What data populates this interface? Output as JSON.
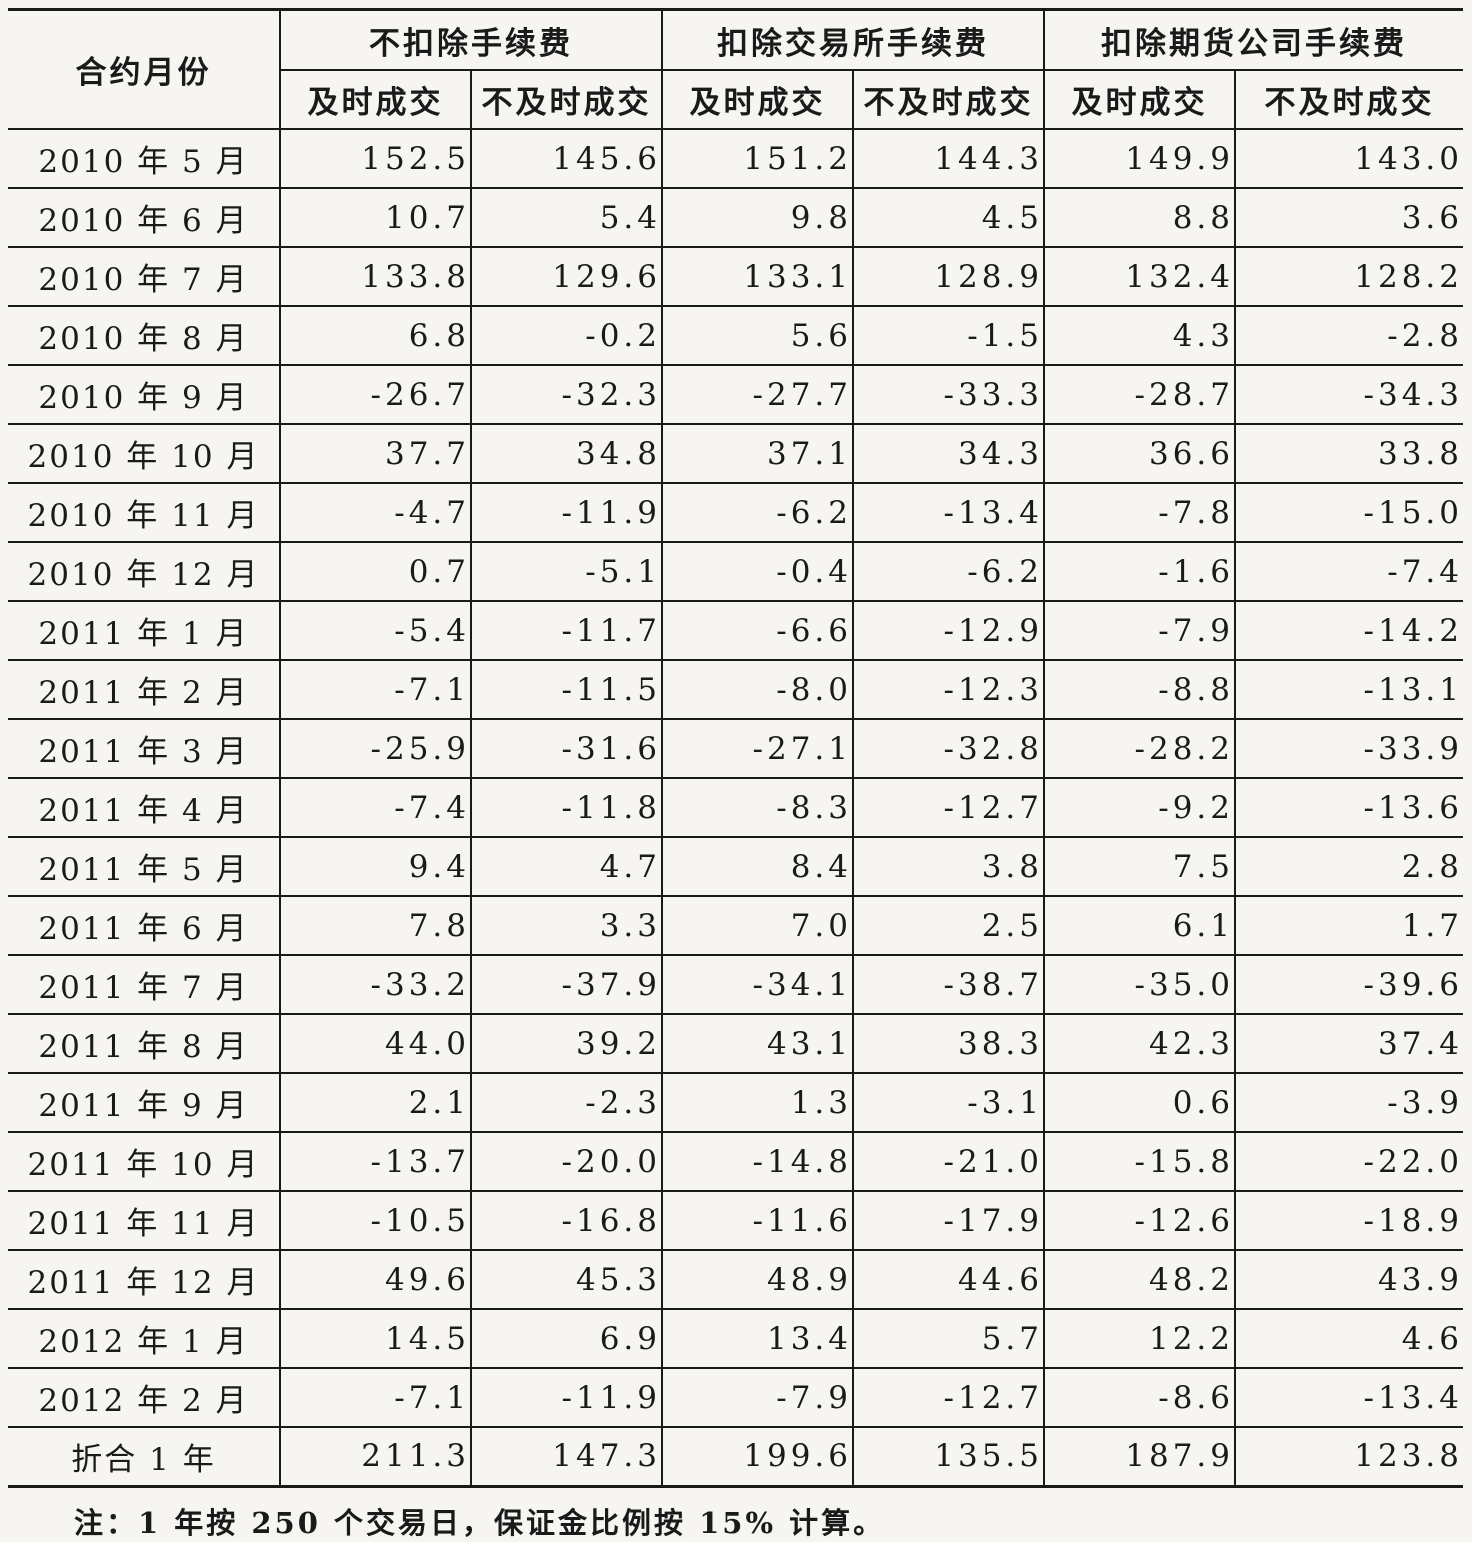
{
  "table": {
    "month_header": "合约月份",
    "groups": [
      "不扣除手续费",
      "扣除交易所手续费",
      "扣除期货公司手续费"
    ],
    "subheaders": [
      "及时成交",
      "不及时成交",
      "及时成交",
      "不及时成交",
      "及时成交",
      "不及时成交"
    ],
    "rows": [
      {
        "month": "2010 年 5 月",
        "values": [
          "152.5",
          "145.6",
          "151.2",
          "144.3",
          "149.9",
          "143.0"
        ]
      },
      {
        "month": "2010 年 6 月",
        "values": [
          "10.7",
          "5.4",
          "9.8",
          "4.5",
          "8.8",
          "3.6"
        ]
      },
      {
        "month": "2010 年 7 月",
        "values": [
          "133.8",
          "129.6",
          "133.1",
          "128.9",
          "132.4",
          "128.2"
        ]
      },
      {
        "month": "2010 年 8 月",
        "values": [
          "6.8",
          "-0.2",
          "5.6",
          "-1.5",
          "4.3",
          "-2.8"
        ]
      },
      {
        "month": "2010 年 9 月",
        "values": [
          "-26.7",
          "-32.3",
          "-27.7",
          "-33.3",
          "-28.7",
          "-34.3"
        ]
      },
      {
        "month": "2010 年 10 月",
        "values": [
          "37.7",
          "34.8",
          "37.1",
          "34.3",
          "36.6",
          "33.8"
        ]
      },
      {
        "month": "2010 年 11 月",
        "values": [
          "-4.7",
          "-11.9",
          "-6.2",
          "-13.4",
          "-7.8",
          "-15.0"
        ]
      },
      {
        "month": "2010 年 12 月",
        "values": [
          "0.7",
          "-5.1",
          "-0.4",
          "-6.2",
          "-1.6",
          "-7.4"
        ]
      },
      {
        "month": "2011 年 1 月",
        "values": [
          "-5.4",
          "-11.7",
          "-6.6",
          "-12.9",
          "-7.9",
          "-14.2"
        ]
      },
      {
        "month": "2011 年 2 月",
        "values": [
          "-7.1",
          "-11.5",
          "-8.0",
          "-12.3",
          "-8.8",
          "-13.1"
        ]
      },
      {
        "month": "2011 年 3 月",
        "values": [
          "-25.9",
          "-31.6",
          "-27.1",
          "-32.8",
          "-28.2",
          "-33.9"
        ]
      },
      {
        "month": "2011 年 4 月",
        "values": [
          "-7.4",
          "-11.8",
          "-8.3",
          "-12.7",
          "-9.2",
          "-13.6"
        ]
      },
      {
        "month": "2011 年 5 月",
        "values": [
          "9.4",
          "4.7",
          "8.4",
          "3.8",
          "7.5",
          "2.8"
        ]
      },
      {
        "month": "2011 年 6 月",
        "values": [
          "7.8",
          "3.3",
          "7.0",
          "2.5",
          "6.1",
          "1.7"
        ]
      },
      {
        "month": "2011 年 7 月",
        "values": [
          "-33.2",
          "-37.9",
          "-34.1",
          "-38.7",
          "-35.0",
          "-39.6"
        ]
      },
      {
        "month": "2011 年 8 月",
        "values": [
          "44.0",
          "39.2",
          "43.1",
          "38.3",
          "42.3",
          "37.4"
        ]
      },
      {
        "month": "2011 年 9 月",
        "values": [
          "2.1",
          "-2.3",
          "1.3",
          "-3.1",
          "0.6",
          "-3.9"
        ]
      },
      {
        "month": "2011 年 10 月",
        "values": [
          "-13.7",
          "-20.0",
          "-14.8",
          "-21.0",
          "-15.8",
          "-22.0"
        ]
      },
      {
        "month": "2011 年 11 月",
        "values": [
          "-10.5",
          "-16.8",
          "-11.6",
          "-17.9",
          "-12.6",
          "-18.9"
        ]
      },
      {
        "month": "2011 年 12 月",
        "values": [
          "49.6",
          "45.3",
          "48.9",
          "44.6",
          "48.2",
          "43.9"
        ]
      },
      {
        "month": "2012 年 1 月",
        "values": [
          "14.5",
          "6.9",
          "13.4",
          "5.7",
          "12.2",
          "4.6"
        ]
      },
      {
        "month": "2012 年 2 月",
        "values": [
          "-7.1",
          "-11.9",
          "-7.9",
          "-12.7",
          "-8.6",
          "-13.4"
        ]
      },
      {
        "month": "折合 1 年",
        "values": [
          "211.3",
          "147.3",
          "199.6",
          "135.5",
          "187.9",
          "123.8"
        ]
      }
    ]
  },
  "note": "注：1 年按 250 个交易日，保证金比例按 15% 计算。"
}
